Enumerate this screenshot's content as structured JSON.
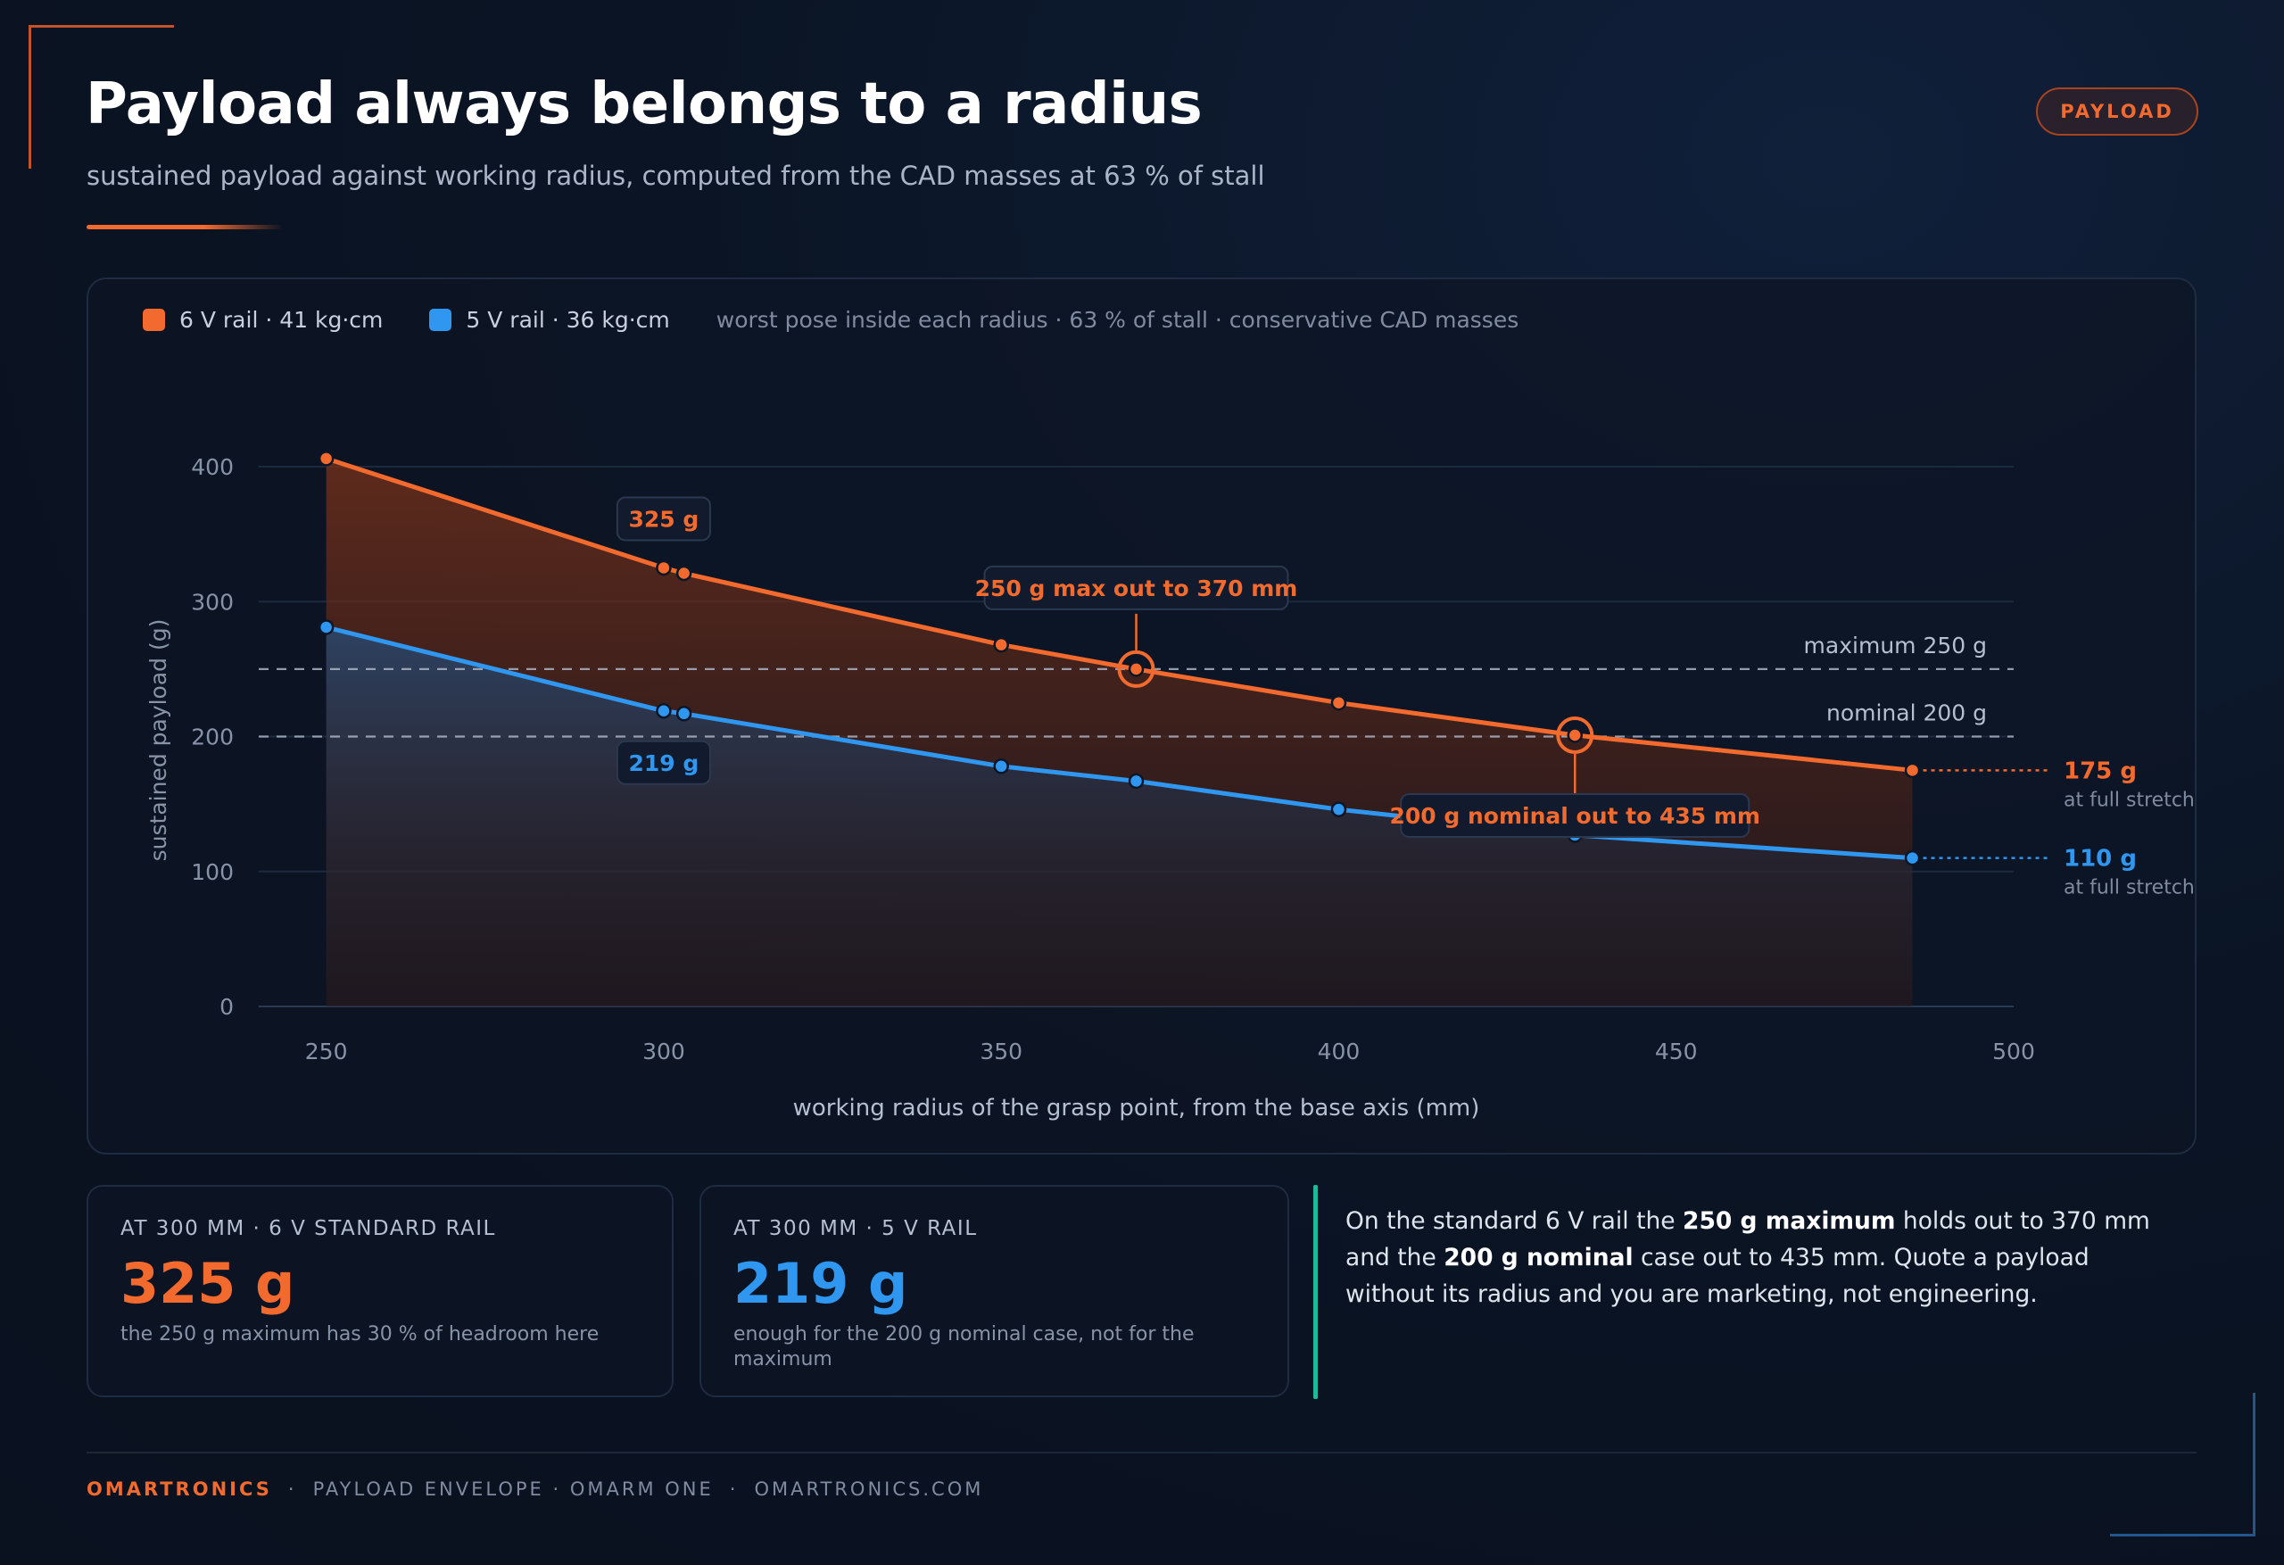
{
  "header": {
    "title": "Payload always belongs to a radius",
    "subtitle": "sustained payload against working radius, computed from the CAD masses at 63 % of stall",
    "badge": "PAYLOAD"
  },
  "legend": {
    "series_6v": "6 V rail · 41 kg·cm",
    "series_5v": "5 V rail · 36 kg·cm",
    "note": "worst pose inside each radius · 63 % of stall · conservative CAD masses"
  },
  "colors": {
    "accent_orange": "#f26a2e",
    "accent_blue": "#2f97f0",
    "teal": "#1fb89a",
    "background": "#0a1424"
  },
  "chart_data": {
    "type": "line",
    "xlabel": "working radius of the grasp point, from the base axis (mm)",
    "ylabel": "sustained payload (g)",
    "xlim": [
      240,
      500
    ],
    "ylim": [
      0,
      400
    ],
    "xticks": [
      250,
      300,
      350,
      400,
      450,
      500
    ],
    "yticks": [
      0,
      100,
      200,
      300,
      400
    ],
    "grid": true,
    "series": [
      {
        "name": "6 V rail · 41 kg·cm",
        "color": "#f26a2e",
        "x": [
          250,
          300,
          303,
          350,
          370,
          400,
          435,
          485
        ],
        "y": [
          406,
          325,
          321,
          268,
          250,
          225,
          201,
          175
        ]
      },
      {
        "name": "5 V rail · 36 kg·cm",
        "color": "#2f97f0",
        "x": [
          250,
          300,
          303,
          350,
          370,
          400,
          435,
          485
        ],
        "y": [
          281,
          219,
          217,
          178,
          167,
          146,
          127,
          110
        ]
      }
    ],
    "reference_lines": [
      {
        "y": 250,
        "label": "maximum 250 g"
      },
      {
        "y": 200,
        "label": "nominal 200 g"
      }
    ],
    "annotations": [
      {
        "x": 300,
        "y": 325,
        "text": "325 g",
        "series": 0
      },
      {
        "x": 300,
        "y": 219,
        "text": "219 g",
        "series": 1
      },
      {
        "x": 370,
        "y": 250,
        "text": "250 g max out to 370 mm",
        "series": 0
      },
      {
        "x": 435,
        "y": 201,
        "text": "200 g nominal out to 435 mm",
        "series": 0
      }
    ],
    "end_labels": [
      {
        "series": 0,
        "value": "175 g",
        "note": "at full stretch"
      },
      {
        "series": 1,
        "value": "110 g",
        "note": "at full stretch"
      }
    ]
  },
  "cards": [
    {
      "label": "AT 300 MM · 6 V STANDARD RAIL",
      "value": "325 g",
      "sub": "the 250 g maximum has 30 % of headroom here"
    },
    {
      "label": "AT 300 MM · 5 V RAIL",
      "value": "219 g",
      "sub": "enough for the 200 g nominal case, not for the maximum"
    }
  ],
  "quote": {
    "p1": "On the standard 6 V rail the ",
    "b1": "250 g maximum",
    "p2": " holds out to 370 mm and the ",
    "b2": "200 g nominal",
    "p3": " case out to 435 mm. Quote a payload without its radius and you are marketing, not engineering."
  },
  "footer": {
    "brand": "OMARTRONICS",
    "product": "PAYLOAD ENVELOPE · OMARM ONE",
    "site": "OMARTRONICS.COM"
  }
}
